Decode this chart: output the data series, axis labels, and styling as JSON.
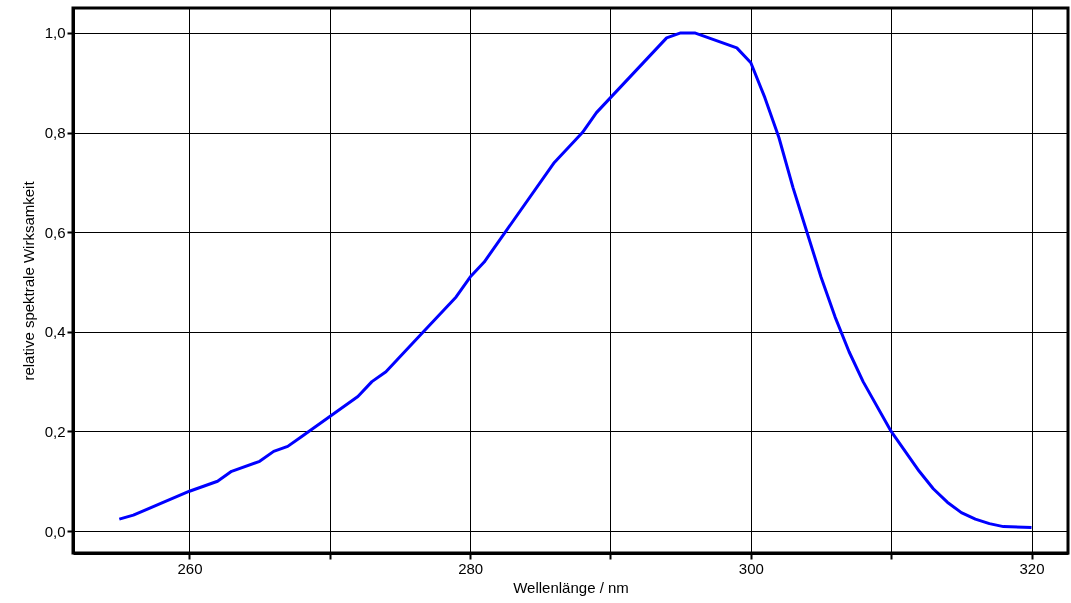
{
  "chart_data": {
    "type": "line",
    "xlabel": "Wellenlänge / nm",
    "ylabel": "relative spektrale Wirksamkeit",
    "x": [
      255,
      256,
      258,
      260,
      261,
      262,
      263,
      265,
      266,
      267,
      268,
      270,
      272,
      273,
      274,
      276,
      279,
      280,
      281,
      286,
      288,
      289,
      294,
      295,
      296,
      299,
      300,
      301,
      302,
      303,
      304,
      305,
      306,
      307,
      308,
      310,
      312,
      313,
      314,
      315,
      316,
      317,
      318,
      320
    ],
    "series": [
      {
        "color": "#0000ff",
        "values": [
          0.024,
          0.032,
          0.056,
          0.08,
          0.09,
          0.1,
          0.12,
          0.14,
          0.16,
          0.17,
          0.19,
          0.23,
          0.27,
          0.3,
          0.32,
          0.38,
          0.47,
          0.51,
          0.54,
          0.74,
          0.8,
          0.84,
          0.99,
          1.0,
          1.0,
          0.97,
          0.94,
          0.87,
          0.79,
          0.69,
          0.6,
          0.51,
          0.43,
          0.36,
          0.3,
          0.2,
          0.12,
          0.085,
          0.058,
          0.037,
          0.024,
          0.015,
          0.009,
          0.007
        ]
      }
    ],
    "xlim": [
      251.7,
      322.6
    ],
    "ylim": [
      -0.044,
      1.05
    ],
    "xticks": [
      260,
      {
        "value": 270,
        "label": null
      },
      280,
      {
        "value": 290,
        "label": null
      },
      300,
      {
        "value": 310,
        "label": null
      },
      320
    ],
    "yticks": [
      {
        "value": 0,
        "label": "0,0"
      },
      {
        "value": 0.2,
        "label": "0,2"
      },
      {
        "value": 0.4,
        "label": "0,4"
      },
      {
        "value": 0.6,
        "label": "0,6"
      },
      {
        "value": 0.8,
        "label": "0,8"
      },
      {
        "value": 1.0,
        "label": "1,0"
      }
    ],
    "grid": true,
    "line_style": "solid"
  }
}
